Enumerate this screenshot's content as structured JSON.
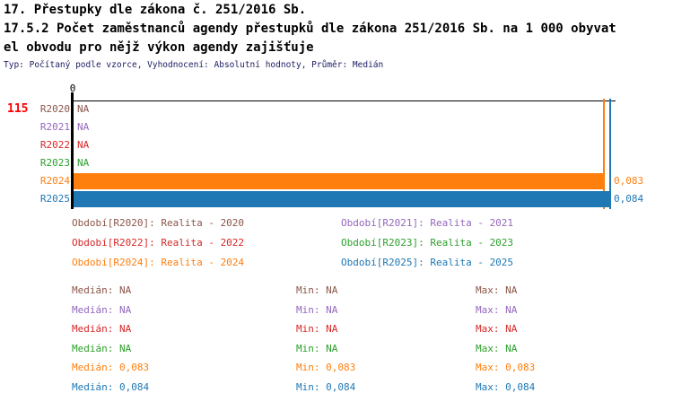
{
  "header": {
    "title_line1": "17. Přestupky dle zákona č. 251/2016 Sb.",
    "title_line2": "17.5.2 Počet zaměstnanců agendy přestupků dle zákona 251/2016 Sb. na 1 000 obyvat",
    "title_line3": "el obvodu pro nějž výkon agendy zajišťuje",
    "meta": "Typ: Počítaný podle vzorce, Vyhodnocení: Absolutní hodnoty, Průměr: Medián"
  },
  "chart_data": {
    "type": "bar",
    "orientation": "horizontal",
    "title": "17.5.2 Počet zaměstnanců agendy přestupků dle zákona 251/2016 Sb. na 1 000 obyvatel obvodu pro nějž výkon agendy zajišťuje",
    "count_label": "115",
    "count_label_color": "#ff0000",
    "x_tick_label": "0",
    "xlim": [
      0,
      0.084
    ],
    "grid": false,
    "legend_position": "bottom",
    "categories": [
      "R2020",
      "R2021",
      "R2022",
      "R2023",
      "R2024",
      "R2025"
    ],
    "values": [
      null,
      null,
      null,
      null,
      0.083,
      0.084
    ],
    "value_labels": [
      "NA",
      "NA",
      "NA",
      "NA",
      "0,083",
      "0,084"
    ],
    "colors": [
      "#8c564b",
      "#9467bd",
      "#d62728",
      "#2ca02c",
      "#ff7f0e",
      "#1f77b4"
    ]
  },
  "legend": {
    "items": [
      {
        "label": "Období[R2020]: Realita - 2020",
        "color": "#8c564b"
      },
      {
        "label": "Období[R2021]: Realita - 2021",
        "color": "#9467bd"
      },
      {
        "label": "Období[R2022]: Realita - 2022",
        "color": "#d62728"
      },
      {
        "label": "Období[R2023]: Realita - 2023",
        "color": "#2ca02c"
      },
      {
        "label": "Období[R2024]: Realita - 2024",
        "color": "#ff7f0e"
      },
      {
        "label": "Období[R2025]: Realita - 2025",
        "color": "#1f77b4"
      }
    ]
  },
  "stats": {
    "col_labels": {
      "median": "Medián",
      "min": "Min",
      "max": "Max"
    },
    "rows": [
      {
        "median": "NA",
        "min": "NA",
        "max": "NA",
        "color": "#8c564b"
      },
      {
        "median": "NA",
        "min": "NA",
        "max": "NA",
        "color": "#9467bd"
      },
      {
        "median": "NA",
        "min": "NA",
        "max": "NA",
        "color": "#d62728"
      },
      {
        "median": "NA",
        "min": "NA",
        "max": "NA",
        "color": "#2ca02c"
      },
      {
        "median": "0,083",
        "min": "0,083",
        "max": "0,083",
        "color": "#ff7f0e"
      },
      {
        "median": "0,084",
        "min": "0,084",
        "max": "0,084",
        "color": "#1f77b4"
      }
    ]
  }
}
